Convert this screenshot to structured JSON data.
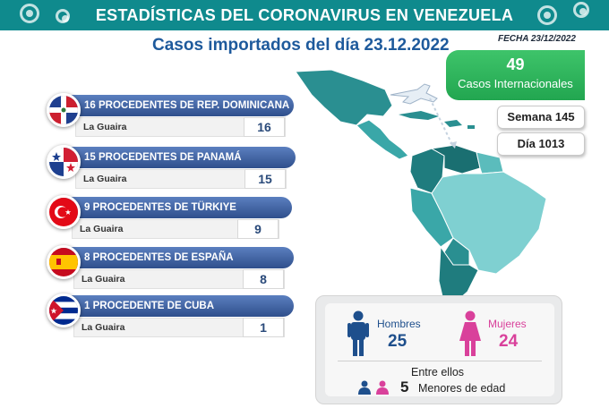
{
  "header": {
    "title": "ESTADÍSTICAS DEL CORONAVIRUS EN VENEZUELA"
  },
  "subtitle": "Casos importados del día 23.12.2022",
  "fecha": "FECHA 23/12/2022",
  "international": {
    "value": "49",
    "label": "Casos Internacionales"
  },
  "semana": "Semana 145",
  "dia": "Día 1013",
  "countries": [
    {
      "label": "16 PROCEDENTES DE REP. DOMINICANA",
      "state": "La Guaira",
      "count": "16",
      "flag": "dominican-republic-flag-icon"
    },
    {
      "label": "15 PROCEDENTES DE PANAMÁ",
      "state": "La Guaira",
      "count": "15",
      "flag": "panama-flag-icon"
    },
    {
      "label": "9 PROCEDENTES DE TÜRKIYE",
      "state": "La Guaira",
      "count": "9",
      "flag": "turkey-flag-icon"
    },
    {
      "label": "8 PROCEDENTES DE ESPAÑA",
      "state": "La Guaira",
      "count": "8",
      "flag": "spain-flag-icon"
    },
    {
      "label": "1 PROCEDENTE DE CUBA",
      "state": "La Guaira",
      "count": "1",
      "flag": "cuba-flag-icon"
    }
  ],
  "gender": {
    "men_label": "Hombres",
    "men_value": "25",
    "women_label": "Mujeres",
    "women_value": "24",
    "minors_intro": "Entre ellos",
    "minors_value": "5",
    "minors_label": "Menores de edad"
  },
  "colors": {
    "header": "#0f8a8d",
    "bar": "#2f4f8c",
    "green": "#22a650",
    "men": "#1e4f8c",
    "women": "#d9419b",
    "map": "#2a9d9e"
  }
}
